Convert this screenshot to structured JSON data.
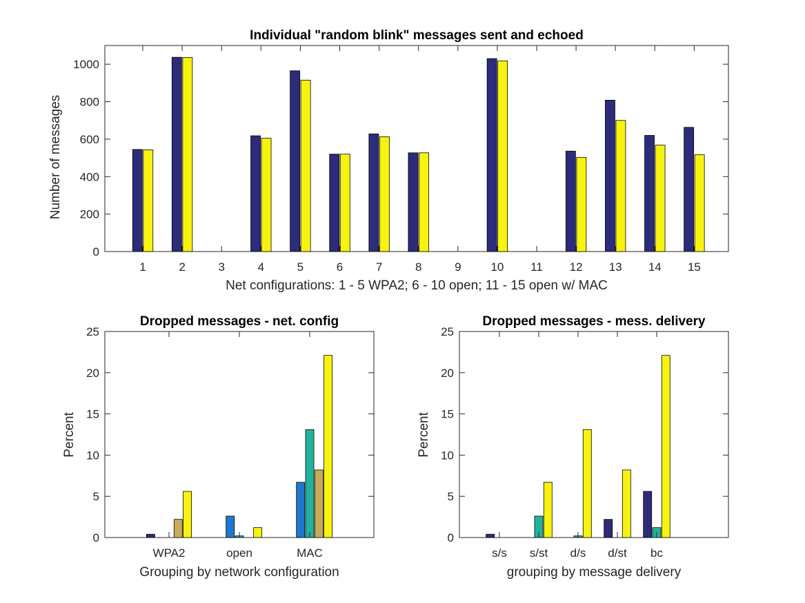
{
  "chart_data": [
    {
      "id": "top",
      "type": "bar",
      "title": "Individual \"random blink\" messages sent and echoed",
      "xlabel": "Net configurations: 1 - 5 WPA2; 6 - 10 open; 11 - 15 open w/ MAC",
      "ylabel": "Number of messages",
      "categories": [
        "1",
        "2",
        "3",
        "4",
        "5",
        "6",
        "7",
        "8",
        "9",
        "10",
        "11",
        "12",
        "13",
        "14",
        "15"
      ],
      "ylim": [
        0,
        1100
      ],
      "yticks": [
        0,
        200,
        400,
        600,
        800,
        1000
      ],
      "series": [
        {
          "color": "#2d2c7a",
          "values": [
            545,
            1037,
            0,
            618,
            965,
            520,
            628,
            527,
            0,
            1030,
            0,
            536,
            808,
            620,
            663
          ]
        },
        {
          "color": "#f7f30f",
          "values": [
            543,
            1036,
            0,
            605,
            915,
            520,
            613,
            527,
            0,
            1018,
            0,
            503,
            700,
            568,
            517
          ]
        }
      ]
    },
    {
      "id": "bottom-left",
      "type": "bar",
      "title": "Dropped messages - net. config",
      "xlabel": "Grouping by network configuration",
      "ylabel": "Percent",
      "categories": [
        "WPA2",
        "open",
        "MAC"
      ],
      "ylim": [
        0,
        25
      ],
      "yticks": [
        0,
        5,
        10,
        15,
        20,
        25
      ],
      "series": [
        {
          "color": "#2d2c7a",
          "values": [
            0.4,
            0,
            0
          ]
        },
        {
          "color": "#1f78d0",
          "values": [
            0,
            2.6,
            6.7
          ]
        },
        {
          "color": "#25b29d",
          "values": [
            0,
            0.2,
            13.1
          ]
        },
        {
          "color": "#c9ac5a",
          "values": [
            2.2,
            0,
            8.2
          ]
        },
        {
          "color": "#f7f30f",
          "values": [
            5.6,
            1.2,
            22.1
          ]
        }
      ]
    },
    {
      "id": "bottom-right",
      "type": "bar",
      "title": "Dropped messages - mess. delivery",
      "xlabel": "grouping by message delivery",
      "ylabel": "Percent",
      "categories": [
        "s/s",
        "s/st",
        "d/s",
        "d/st",
        "bc"
      ],
      "ylim": [
        0,
        25
      ],
      "yticks": [
        0,
        5,
        10,
        15,
        20,
        25
      ],
      "series": [
        {
          "color": "#2d2c7a",
          "values": [
            0.4,
            0,
            0,
            2.2,
            5.6
          ]
        },
        {
          "color": "#25b29d",
          "values": [
            0,
            2.6,
            0.2,
            0,
            1.2
          ]
        },
        {
          "color": "#f7f30f",
          "values": [
            0,
            6.7,
            13.1,
            8.2,
            22.1
          ]
        }
      ]
    }
  ]
}
